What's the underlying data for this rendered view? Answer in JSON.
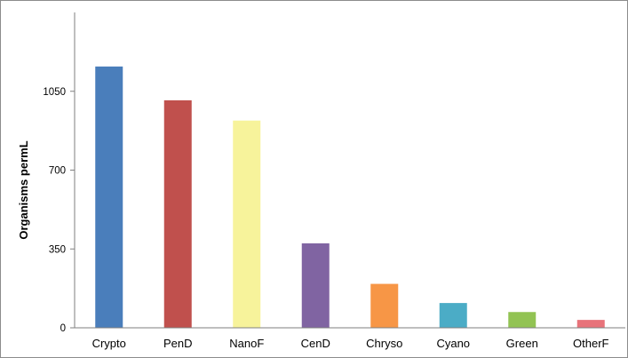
{
  "chart_data": {
    "type": "bar",
    "title": "",
    "xlabel": "",
    "ylabel": "Organisms permL",
    "categories": [
      "Crypto",
      "PenD",
      "NanoF",
      "CenD",
      "Chryso",
      "Cyano",
      "Green",
      "OtherF"
    ],
    "values": [
      1160,
      1010,
      920,
      375,
      195,
      110,
      70,
      35
    ],
    "colors": [
      "#4a7ebb",
      "#c0504d",
      "#f7f39b",
      "#8064a2",
      "#f79646",
      "#4bacc6",
      "#92c353",
      "#e8737a"
    ],
    "yticks": [
      0,
      350,
      700,
      1050
    ],
    "ylim": [
      0,
      1400
    ],
    "grid": false,
    "legend": "none"
  }
}
